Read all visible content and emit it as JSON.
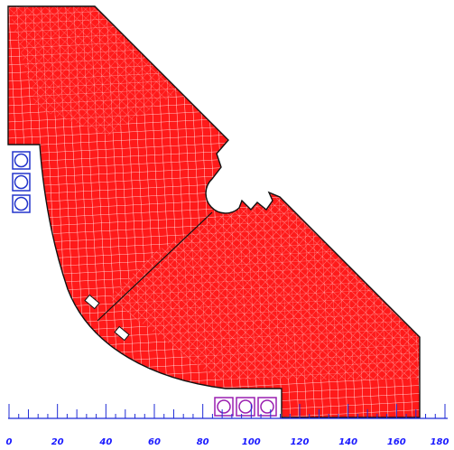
{
  "axis": {
    "color": "#1f2bd6",
    "labels": [
      "0",
      "20",
      "40",
      "60",
      "80",
      "100",
      "120",
      "140",
      "160",
      "180"
    ]
  },
  "mesh": {
    "fill": "#ff1a1a",
    "grid_color": "#ffffff",
    "outline": "#111111"
  },
  "coils": {
    "left_color": "#2233cc",
    "bottom_color": "#9a1fb0"
  }
}
